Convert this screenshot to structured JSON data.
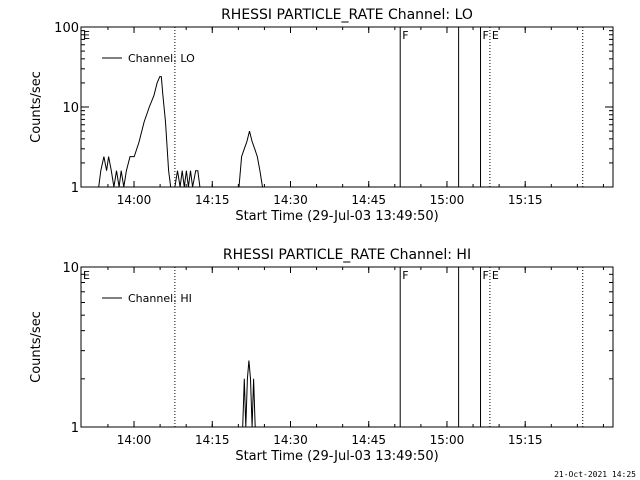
{
  "chart_data": [
    {
      "type": "line",
      "title": "RHESSI PARTICLE_RATE Channel: LO",
      "xlabel": "Start Time (29-Jul-03 13:49:50)",
      "ylabel": "Counts/sec",
      "ylog": true,
      "ylim": [
        1,
        100
      ],
      "xlim_minutes_after_start": [
        0,
        102
      ],
      "x_ticks": [
        "14:00",
        "14:15",
        "14:30",
        "14:45",
        "15:00",
        "15:15"
      ],
      "y_ticks": [
        "1",
        "10",
        "100"
      ],
      "legend": {
        "entries": [
          "Channel: LO"
        ],
        "placement": "top-left"
      },
      "series": [
        {
          "name": "Channel: LO",
          "x_minutes_after_start": [
            3.4,
            3.8,
            4.4,
            4.9,
            5.3,
            5.8,
            6.3,
            6.8,
            7.3,
            7.7,
            8.2,
            8.7,
            9.4,
            10.2,
            11.1,
            12.1,
            13.1,
            14.0,
            14.6,
            15.1,
            15.4,
            15.7,
            16.2,
            16.8,
            17.2,
            17.6,
            18.0,
            18.5,
            19.0,
            19.4,
            19.8,
            20.2,
            20.6,
            21.0,
            21.4,
            22.0,
            22.4,
            22.8,
            30.3,
            30.8,
            31.3,
            31.8,
            32.3,
            32.8,
            33.3,
            33.8,
            34.3,
            34.8
          ],
          "y": [
            1,
            1.6,
            2.4,
            1.6,
            2.4,
            1.6,
            1,
            1.6,
            1,
            1.6,
            1,
            1.6,
            2.4,
            2.4,
            3.6,
            6.5,
            10,
            14,
            20,
            24,
            24,
            14,
            6.5,
            1.6,
            1,
            1,
            1,
            1.6,
            1,
            1.6,
            1,
            1.6,
            1,
            1.6,
            1,
            1.6,
            1.6,
            1,
            1,
            2.4,
            3.0,
            3.7,
            5.0,
            3.7,
            3.0,
            2.4,
            1.6,
            1
          ]
        }
      ],
      "vlines": [
        {
          "t": 18.0,
          "style": "dotted",
          "label": ""
        },
        {
          "t": 61.2,
          "style": "solid",
          "label": "F"
        },
        {
          "t": 72.4,
          "style": "solid",
          "label": ""
        },
        {
          "t": 76.6,
          "style": "solid",
          "label": "F"
        },
        {
          "t": 78.4,
          "style": "dotted",
          "label": "E"
        },
        {
          "t": 96.2,
          "style": "dotted",
          "label": ""
        },
        {
          "t": 0.0,
          "style": "none",
          "label": "E"
        }
      ]
    },
    {
      "type": "line",
      "title": "RHESSI PARTICLE_RATE Channel: HI",
      "xlabel": "Start Time (29-Jul-03 13:49:50)",
      "ylabel": "Counts/sec",
      "ylog": true,
      "ylim": [
        1,
        10
      ],
      "xlim_minutes_after_start": [
        0,
        102
      ],
      "x_ticks": [
        "14:00",
        "14:15",
        "14:30",
        "14:45",
        "15:00",
        "15:15"
      ],
      "y_ticks": [
        "1",
        "10"
      ],
      "legend": {
        "entries": [
          "Channel: HI"
        ],
        "placement": "top-left"
      },
      "series": [
        {
          "name": "Channel: HI",
          "x_minutes_after_start": [
            31.0,
            31.3,
            31.6,
            31.9,
            32.2,
            32.5,
            32.8,
            33.1,
            33.4,
            33.7,
            34.0
          ],
          "y": [
            1,
            2.0,
            1,
            2.0,
            2.6,
            2.0,
            1,
            2.0,
            1,
            1,
            1
          ]
        }
      ],
      "vlines": [
        {
          "t": 18.0,
          "style": "dotted",
          "label": ""
        },
        {
          "t": 61.2,
          "style": "solid",
          "label": "F"
        },
        {
          "t": 72.4,
          "style": "solid",
          "label": ""
        },
        {
          "t": 76.6,
          "style": "solid",
          "label": "F"
        },
        {
          "t": 78.4,
          "style": "dotted",
          "label": "E"
        },
        {
          "t": 96.2,
          "style": "dotted",
          "label": ""
        },
        {
          "t": 0.0,
          "style": "none",
          "label": "E"
        }
      ]
    }
  ],
  "footer": "21-Oct-2021 14:25"
}
